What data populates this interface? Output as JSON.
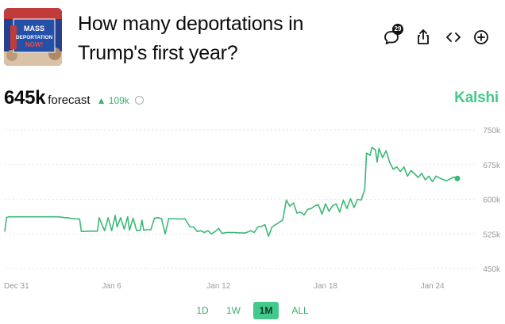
{
  "market": {
    "title": "How many deportations in Trump's first year?",
    "thumbnail": {
      "sign_text": "MASS DEPORTATION NOW!"
    },
    "comments_count": "29"
  },
  "actions": [
    {
      "name": "comments-icon"
    },
    {
      "name": "share-icon"
    },
    {
      "name": "embed-icon"
    },
    {
      "name": "add-icon"
    }
  ],
  "forecast": {
    "value": "645k",
    "label": "forecast",
    "delta": "▲ 109k"
  },
  "brand": "Kalshi",
  "colors": {
    "accent": "#43c98a",
    "line": "#3cb878",
    "text": "#0b0b0b",
    "grid": "#e3e3e3"
  },
  "chart_data": {
    "type": "line",
    "x_tick_labels": [
      "Dec 31",
      "Jan 6",
      "Jan 12",
      "Jan 18",
      "Jan 24"
    ],
    "x_ticks_day": [
      0,
      6,
      12,
      18,
      24
    ],
    "y_tick_labels": [
      "750k",
      "675k",
      "600k",
      "525k",
      "450k"
    ],
    "y_ticks": [
      750000,
      675000,
      600000,
      525000,
      450000
    ],
    "ylim": [
      450000,
      750000
    ],
    "xlim_day": [
      0,
      25.8
    ],
    "grid": true,
    "series": [
      {
        "x_day": [
          0,
          0.1,
          0.2,
          1,
          2,
          3,
          3.4,
          3.5,
          3.8,
          4.2,
          4.3,
          4.7,
          5.2,
          5.3,
          5.6,
          5.8,
          6,
          6.2,
          6.3,
          6.5,
          6.7,
          6.9,
          7,
          7.2,
          7.4,
          7.6,
          7.7,
          7.8,
          8,
          8.2,
          8.4,
          8.6,
          8.8,
          9,
          9.2,
          9.5,
          9.8,
          10.1,
          10.4,
          10.6,
          10.8,
          11,
          11.2,
          11.4,
          11.6,
          11.8,
          12,
          12.2,
          12.4,
          12.6,
          12.9,
          13.2,
          13.5,
          13.8,
          14,
          14.2,
          14.4,
          14.6,
          14.8,
          15,
          15.2,
          15.4,
          15.6,
          15.8,
          16,
          16.2,
          16.4,
          16.6,
          16.8,
          17,
          17.2,
          17.4,
          17.6,
          17.8,
          18,
          18.2,
          18.4,
          18.6,
          18.8,
          19,
          19.2,
          19.4,
          19.6,
          19.8,
          20,
          20.1,
          20.2,
          20.3,
          20.5,
          20.6,
          20.8,
          20.9,
          21,
          21.2,
          21.4,
          21.6,
          21.8,
          22,
          22.2,
          22.4,
          22.6,
          22.8,
          23,
          23.2,
          23.4,
          23.6,
          23.8,
          24,
          24.2,
          24.5,
          24.8,
          25,
          25.2,
          25.4
        ],
        "y": [
          530000,
          560000,
          562000,
          562000,
          562000,
          562000,
          560000,
          560000,
          558000,
          557000,
          530000,
          531000,
          531000,
          560000,
          532000,
          560000,
          532000,
          565000,
          540000,
          560000,
          535000,
          562000,
          533000,
          559000,
          532000,
          533000,
          555000,
          533000,
          534000,
          534000,
          559000,
          560000,
          558000,
          525000,
          558000,
          558000,
          557000,
          558000,
          540000,
          540000,
          530000,
          532000,
          528000,
          532000,
          525000,
          530000,
          537000,
          526000,
          528000,
          528000,
          528000,
          527000,
          527000,
          532000,
          528000,
          540000,
          541000,
          545000,
          520000,
          540000,
          545000,
          550000,
          555000,
          598000,
          585000,
          592000,
          570000,
          572000,
          566000,
          578000,
          580000,
          586000,
          588000,
          568000,
          590000,
          574000,
          586000,
          590000,
          572000,
          598000,
          580000,
          601000,
          582000,
          600000,
          598000,
          610000,
          620000,
          700000,
          695000,
          712000,
          707000,
          680000,
          710000,
          690000,
          705000,
          680000,
          665000,
          670000,
          660000,
          670000,
          650000,
          662000,
          655000,
          647000,
          656000,
          642000,
          650000,
          638000,
          650000,
          644000,
          640000,
          644000,
          648000,
          645000
        ]
      }
    ]
  },
  "time_ranges": [
    {
      "label": "1D",
      "active": false
    },
    {
      "label": "1W",
      "active": false
    },
    {
      "label": "1M",
      "active": true
    },
    {
      "label": "ALL",
      "active": false
    }
  ]
}
